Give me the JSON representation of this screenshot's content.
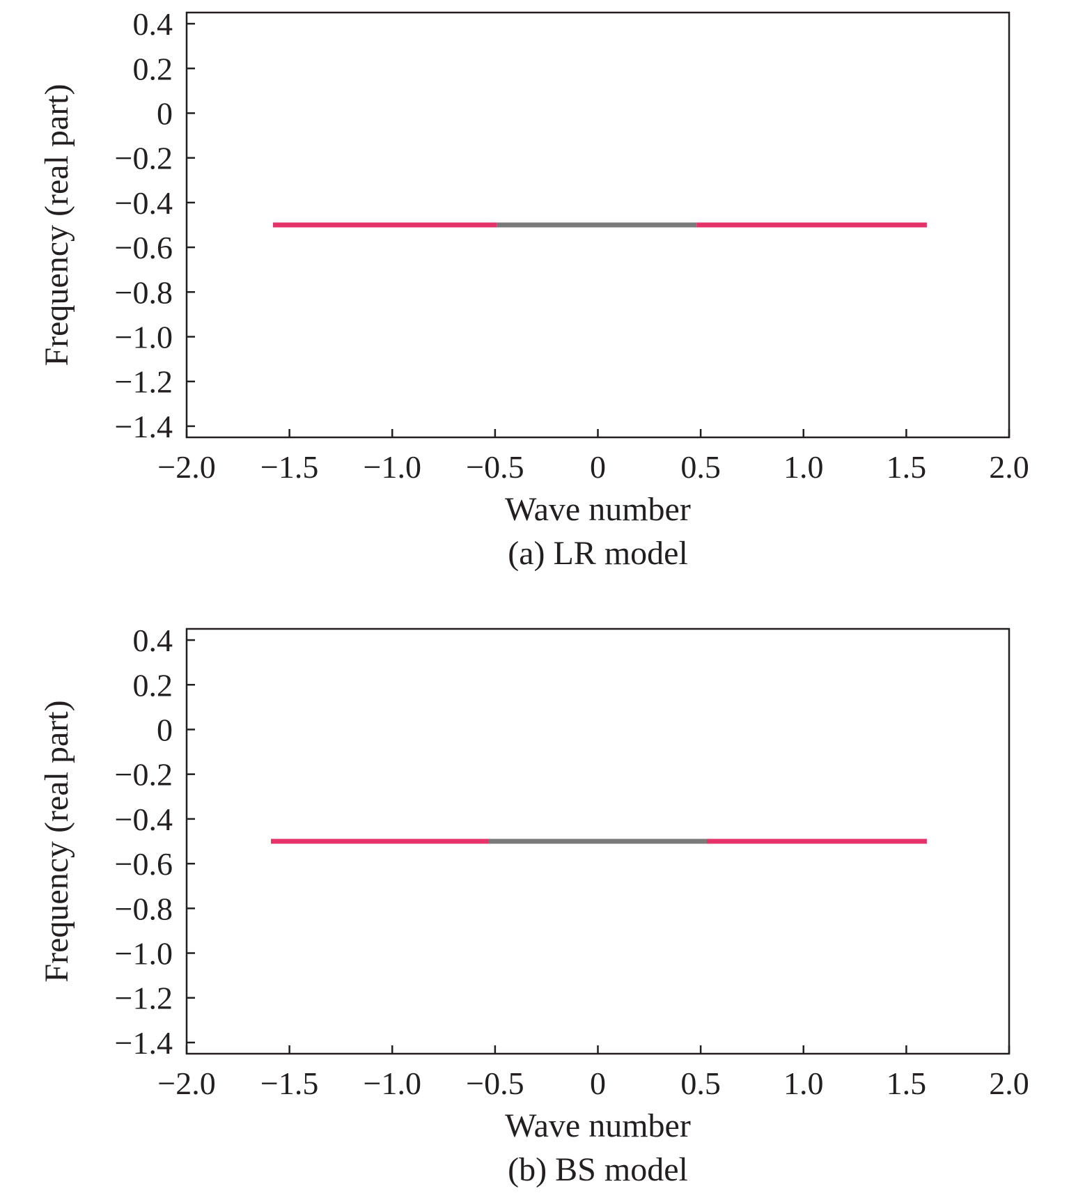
{
  "colors": {
    "background": "#ffffff",
    "axes": "#231f20",
    "series_pink": "#e5336a",
    "series_gray": "#7a7a7a"
  },
  "chart_data": [
    {
      "type": "line",
      "caption": "(a) LR model",
      "xlabel": "Wave number",
      "ylabel": "Frequency (real part)",
      "xlim": [
        -2.0,
        2.0
      ],
      "ylim": [
        -1.45,
        0.45
      ],
      "xticks": [
        -2.0,
        -1.5,
        -1.0,
        -0.5,
        0,
        0.5,
        1.0,
        1.5,
        2.0
      ],
      "xtick_labels": [
        "−2.0",
        "−1.5",
        "−1.0",
        "−0.5",
        "0",
        "0.5",
        "1.0",
        "1.5",
        "2.0"
      ],
      "yticks": [
        0.4,
        0.2,
        0,
        -0.2,
        -0.4,
        -0.6,
        -0.8,
        -1.0,
        -1.2,
        -1.4
      ],
      "ytick_labels": [
        "0.4",
        "0.2",
        "0",
        "−0.2",
        "−0.4",
        "−0.6",
        "−0.8",
        "−1.0",
        "−1.2",
        "−1.4"
      ],
      "grid": false,
      "segments": [
        {
          "x": [
            -1.58,
            -0.49
          ],
          "y": [
            -0.5,
            -0.5
          ],
          "color": "#e5336a"
        },
        {
          "x": [
            -0.49,
            0.48
          ],
          "y": [
            -0.5,
            -0.5
          ],
          "color": "#7a7a7a"
        },
        {
          "x": [
            0.48,
            1.6
          ],
          "y": [
            -0.5,
            -0.5
          ],
          "color": "#e5336a"
        }
      ]
    },
    {
      "type": "line",
      "caption": "(b) BS model",
      "xlabel": "Wave number",
      "ylabel": "Frequency (real part)",
      "xlim": [
        -2.0,
        2.0
      ],
      "ylim": [
        -1.45,
        0.45
      ],
      "xticks": [
        -2.0,
        -1.5,
        -1.0,
        -0.5,
        0,
        0.5,
        1.0,
        1.5,
        2.0
      ],
      "xtick_labels": [
        "−2.0",
        "−1.5",
        "−1.0",
        "−0.5",
        "0",
        "0.5",
        "1.0",
        "1.5",
        "2.0"
      ],
      "yticks": [
        0.4,
        0.2,
        0,
        -0.2,
        -0.4,
        -0.6,
        -0.8,
        -1.0,
        -1.2,
        -1.4
      ],
      "ytick_labels": [
        "0.4",
        "0.2",
        "0",
        "−0.2",
        "−0.4",
        "−0.6",
        "−0.8",
        "−1.0",
        "−1.2",
        "−1.4"
      ],
      "grid": false,
      "segments": [
        {
          "x": [
            -1.59,
            -0.53
          ],
          "y": [
            -0.5,
            -0.5
          ],
          "color": "#e5336a"
        },
        {
          "x": [
            -0.53,
            0.53
          ],
          "y": [
            -0.5,
            -0.5
          ],
          "color": "#7a7a7a"
        },
        {
          "x": [
            0.53,
            1.6
          ],
          "y": [
            -0.5,
            -0.5
          ],
          "color": "#e5336a"
        }
      ]
    }
  ]
}
